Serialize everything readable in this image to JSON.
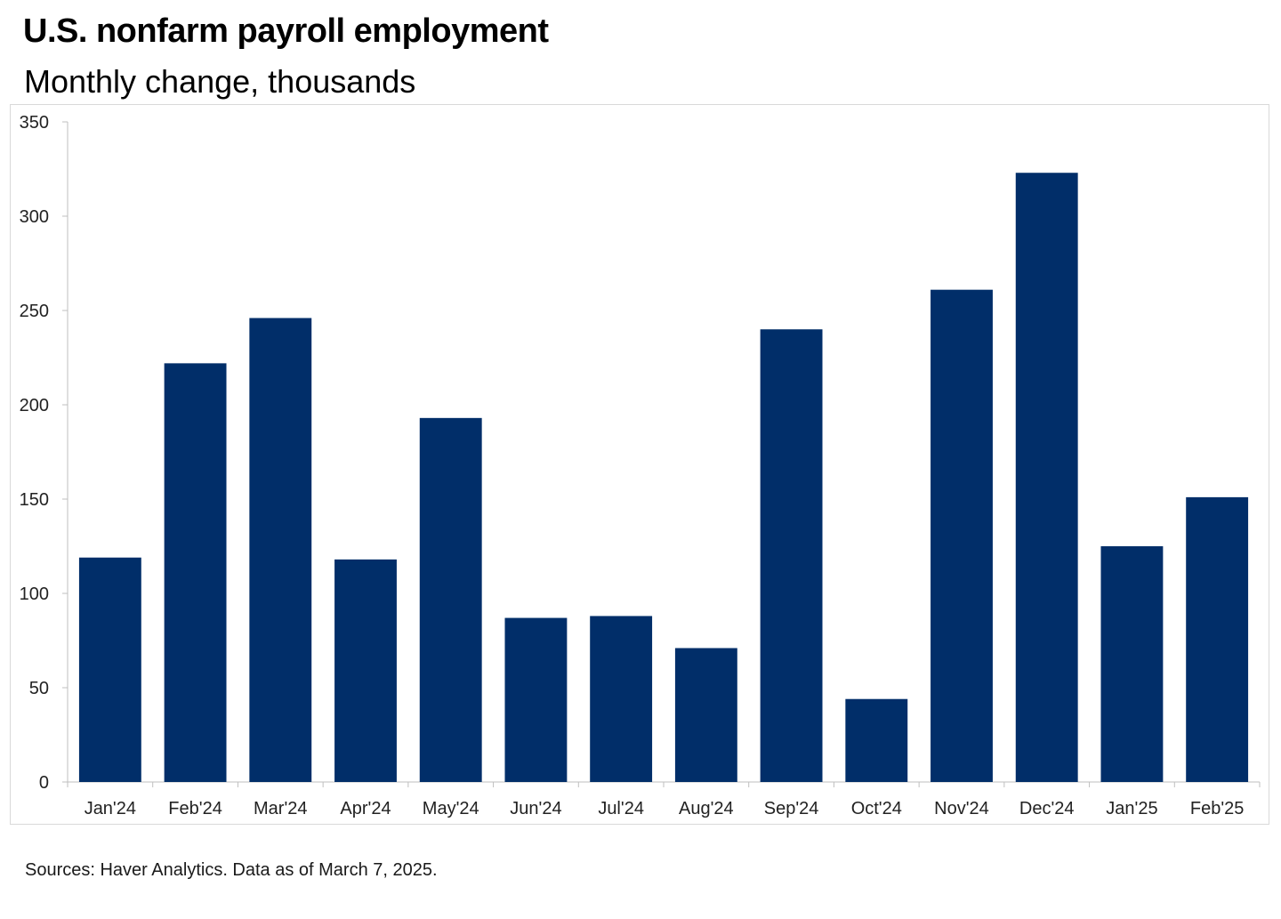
{
  "header": {
    "title": "U.S. nonfarm payroll employment",
    "subtitle": "Monthly change, thousands"
  },
  "footer": {
    "source": "Sources: Haver Analytics. Data as of March 7, 2025."
  },
  "colors": {
    "bar": "#012E69",
    "axis": "#BFBFBF"
  },
  "chart_data": {
    "type": "bar",
    "title": "U.S. nonfarm payroll employment",
    "subtitle": "Monthly change, thousands",
    "xlabel": "",
    "ylabel": "",
    "categories": [
      "Jan'24",
      "Feb'24",
      "Mar'24",
      "Apr'24",
      "May'24",
      "Jun'24",
      "Jul'24",
      "Aug'24",
      "Sep'24",
      "Oct'24",
      "Nov'24",
      "Dec'24",
      "Jan'25",
      "Feb'25"
    ],
    "values": [
      119,
      222,
      246,
      118,
      193,
      87,
      88,
      71,
      240,
      44,
      261,
      323,
      125,
      151
    ],
    "ylim": [
      0,
      350
    ],
    "yticks": [
      0,
      50,
      100,
      150,
      200,
      250,
      300,
      350
    ],
    "grid": false,
    "legend": "none"
  }
}
